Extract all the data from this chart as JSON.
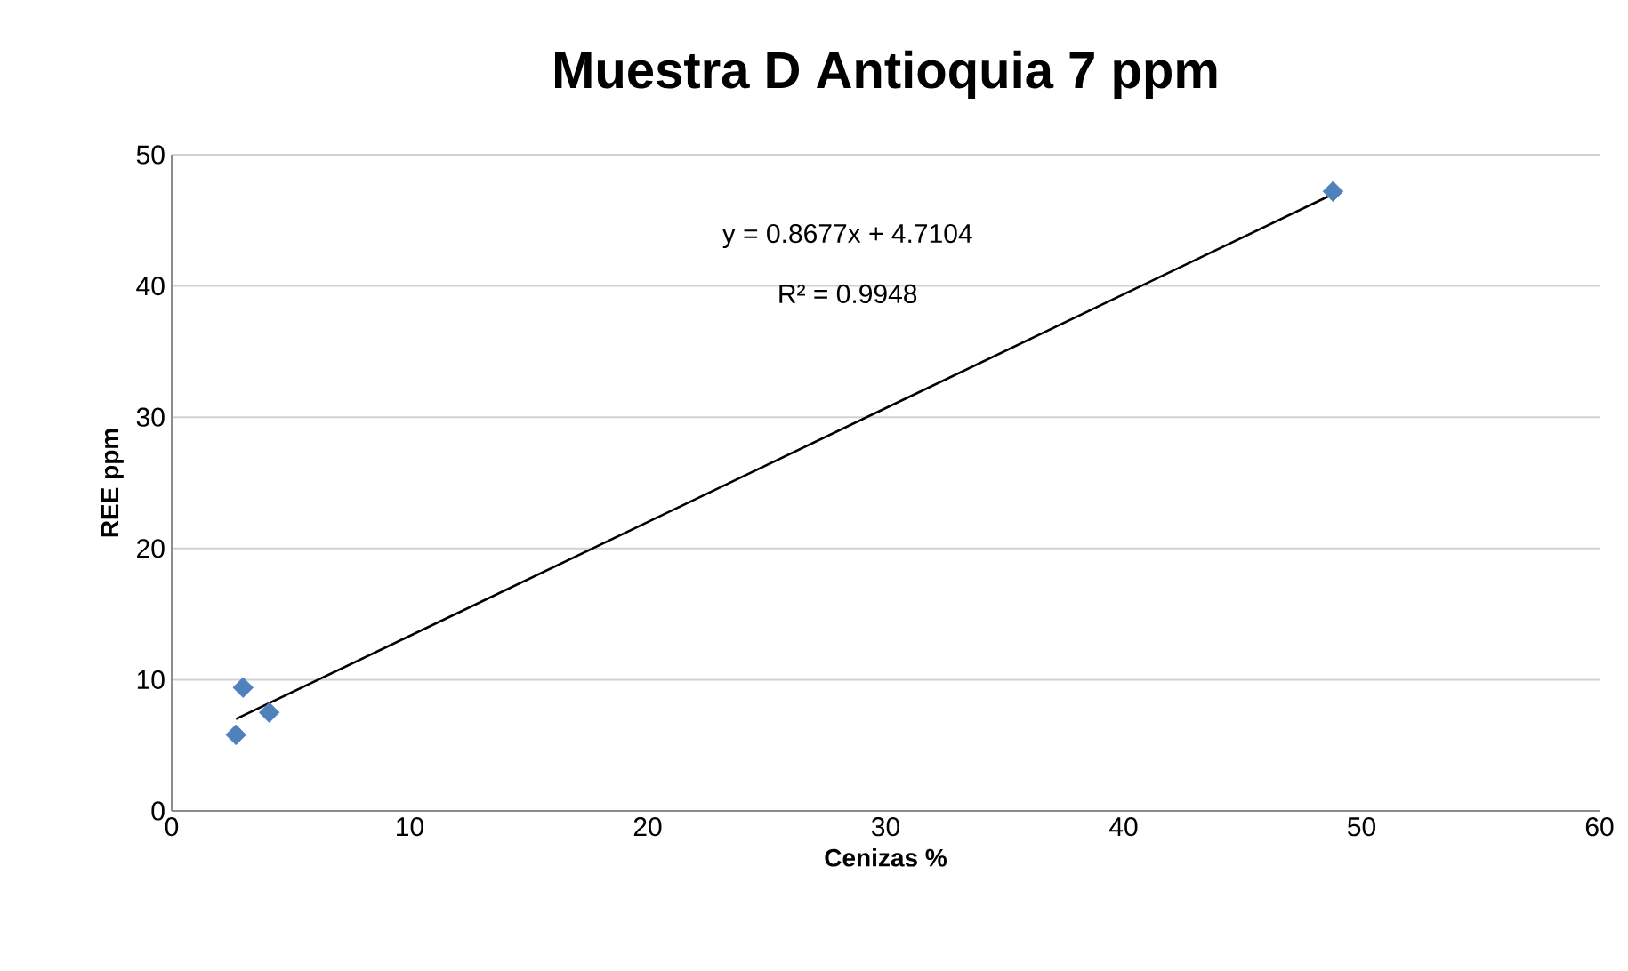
{
  "chart_data": {
    "type": "scatter",
    "title": "Muestra D Antioquia 7 ppm",
    "xlabel": "Cenizas %",
    "ylabel": "REE ppm",
    "series": [
      {
        "color": "#4f81bd",
        "marker": "diamond",
        "x": [
          2.7,
          3.0,
          4.1,
          48.8
        ],
        "values": [
          5.8,
          9.4,
          7.5,
          47.2
        ]
      },
      {
        "type": "line",
        "color": "#000000",
        "marker": "none",
        "x": [
          2.7,
          48.8
        ],
        "values": [
          7.0,
          47.0
        ]
      }
    ],
    "annotations": [
      "y = 0.8677x + 4.7104",
      "R² = 0.9948"
    ],
    "xlim": [
      0,
      60
    ],
    "ylim": [
      0,
      50
    ],
    "xticks": [
      0,
      10,
      20,
      30,
      40,
      50,
      60
    ],
    "yticks": [
      0,
      10,
      20,
      30,
      40,
      50
    ],
    "grid": "y"
  }
}
